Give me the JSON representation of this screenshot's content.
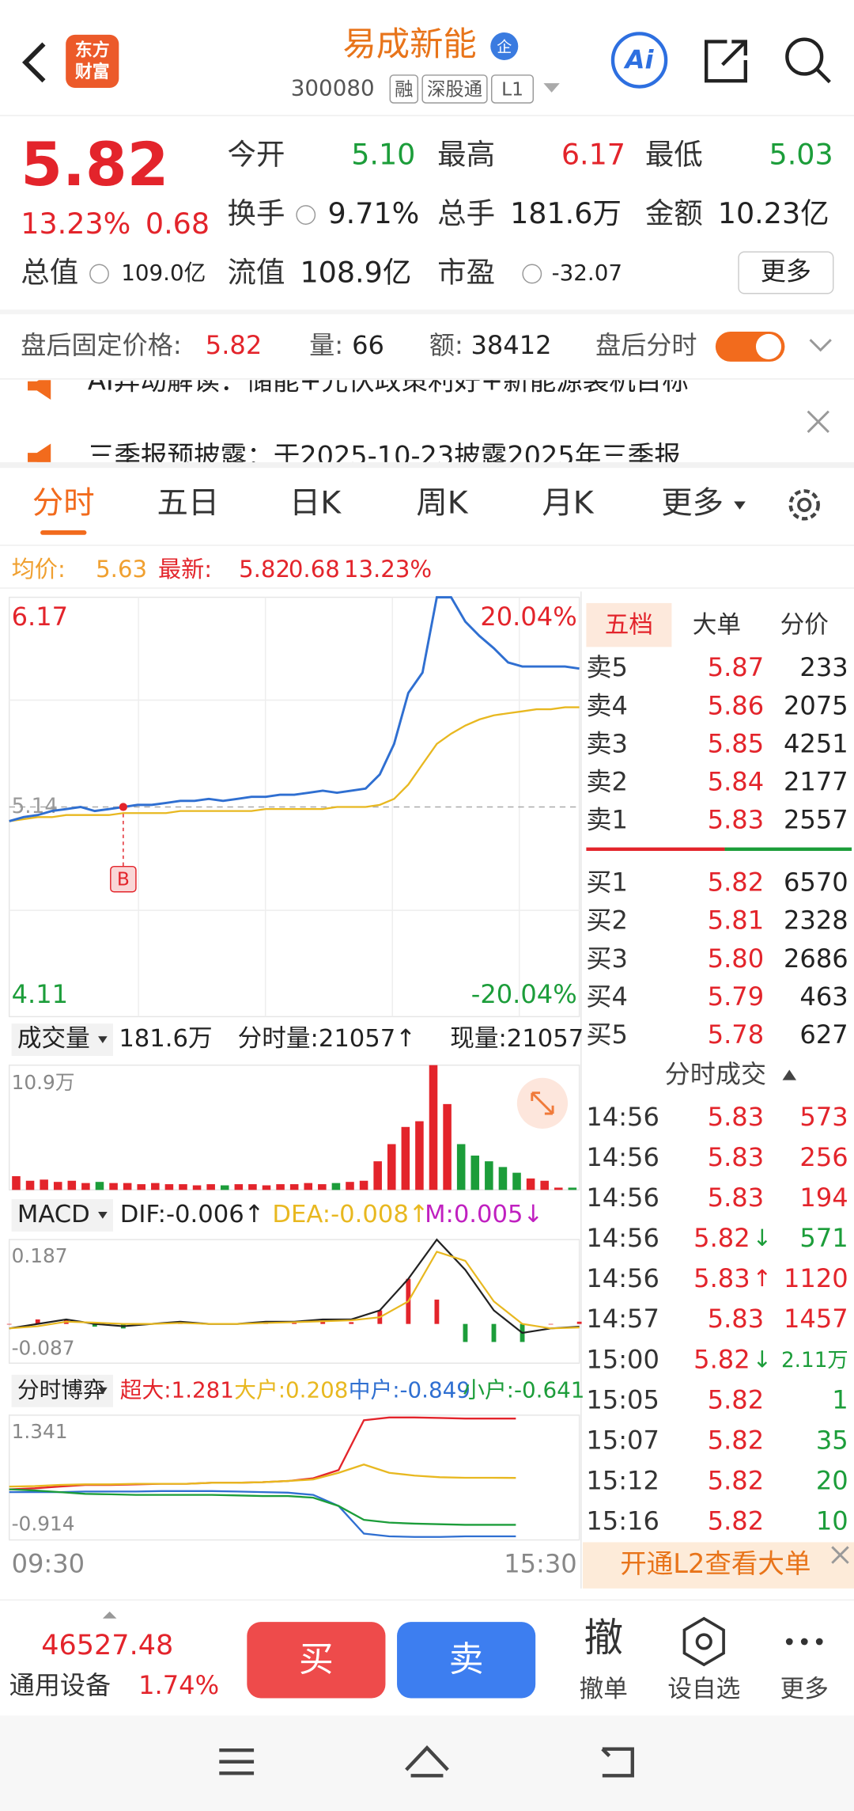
{
  "header": {
    "logo": [
      "东方",
      "财富"
    ],
    "title": "易成新能",
    "badge": "企",
    "code": "300080",
    "tags": [
      "融",
      "深股通",
      "L1"
    ],
    "ai": "Ai"
  },
  "quote": {
    "price": "5.82",
    "change_pct": "13.23%",
    "change": "0.68",
    "fields": [
      {
        "label": "今开",
        "value": "5.10",
        "color": "#1c9d3a"
      },
      {
        "label": "最高",
        "value": "6.17",
        "color": "#e3242b"
      },
      {
        "label": "最低",
        "value": "5.03",
        "color": "#1c9d3a"
      },
      {
        "label": "换手",
        "value": "9.71%",
        "color": "#222222"
      },
      {
        "label": "总手",
        "value": "181.6万",
        "color": "#222222"
      },
      {
        "label": "金额",
        "value": "10.23亿",
        "color": "#222222"
      },
      {
        "label": "总值",
        "value": "109.0亿",
        "color": "#222222"
      },
      {
        "label": "流值",
        "value": "108.9亿",
        "color": "#222222"
      },
      {
        "label": "市盈",
        "value": "-32.07",
        "color": "#222222"
      }
    ],
    "more": "更多"
  },
  "after_hours": {
    "label": "盘后固定价格:",
    "price": "5.82",
    "vol_label": "量:",
    "vol": "66",
    "amt_label": "额:",
    "amt": "38412",
    "toggle_label": "盘后分时"
  },
  "notices": [
    "AI异动解读：储能+光伏政策利好+新能源装机目标",
    "三季报预披露：于2025-10-23披露2025年三季报"
  ],
  "tabs": [
    "分时",
    "五日",
    "日K",
    "周K",
    "月K",
    "更多"
  ],
  "info_bar": {
    "avg_label": "均价:",
    "avg": "5.63",
    "last_label": "最新:",
    "last": "5.82",
    "change": "0.68",
    "pct": "13.23%"
  },
  "price_chart": {
    "ylim": [
      4.11,
      6.17
    ],
    "prev_close": 5.14,
    "pct_max": "20.04%",
    "pct_min": "-20.04%",
    "marker": "B",
    "price": [
      5.07,
      5.09,
      5.1,
      5.12,
      5.13,
      5.14,
      5.12,
      5.13,
      5.14,
      5.15,
      5.15,
      5.16,
      5.17,
      5.17,
      5.18,
      5.17,
      5.18,
      5.19,
      5.19,
      5.2,
      5.2,
      5.21,
      5.22,
      5.21,
      5.22,
      5.23,
      5.3,
      5.45,
      5.7,
      5.8,
      6.17,
      6.17,
      6.05,
      5.98,
      5.92,
      5.85,
      5.83,
      5.83,
      5.83,
      5.83,
      5.82
    ],
    "avg": [
      5.07,
      5.08,
      5.09,
      5.09,
      5.1,
      5.1,
      5.1,
      5.1,
      5.11,
      5.11,
      5.11,
      5.11,
      5.12,
      5.12,
      5.12,
      5.12,
      5.12,
      5.12,
      5.13,
      5.13,
      5.13,
      5.13,
      5.13,
      5.14,
      5.14,
      5.14,
      5.15,
      5.18,
      5.25,
      5.35,
      5.45,
      5.5,
      5.54,
      5.57,
      5.59,
      5.6,
      5.61,
      5.62,
      5.62,
      5.63,
      5.63
    ],
    "times": [
      "09:30",
      "15:30"
    ]
  },
  "volume": {
    "label": "成交量",
    "total": "181.6万",
    "tick_vol": "分时量:21057↑",
    "now_vol": "现量:21057",
    "max": {
      "value": 10.9,
      "label": "10.9万"
    },
    "values": [
      1.2,
      0.8,
      0.9,
      0.7,
      0.8,
      0.6,
      0.7,
      0.6,
      0.6,
      0.5,
      0.6,
      0.5,
      0.5,
      0.4,
      0.5,
      0.4,
      0.5,
      0.5,
      0.4,
      0.5,
      0.5,
      0.6,
      0.5,
      0.6,
      0.7,
      0.8,
      2.5,
      4.0,
      5.5,
      6.0,
      10.9,
      7.5,
      4.0,
      3.0,
      2.5,
      2.0,
      1.5,
      1.0,
      0.8,
      0.2,
      0.2
    ]
  },
  "macd": {
    "label": "MACD",
    "dif_label": "DIF:-0.006↑",
    "dea_label": "DEA:-0.008↑",
    "m_label": "M:0.005↓",
    "ylim": [
      -0.087,
      0.187
    ],
    "dif": [
      -0.01,
      0.0,
      0.01,
      0.0,
      -0.005,
      0,
      0.005,
      0.0,
      0.0,
      0.005,
      0.005,
      0.01,
      0.01,
      0.03,
      0.1,
      0.187,
      0.12,
      0.03,
      -0.02,
      -0.01,
      -0.006
    ],
    "dea": [
      -0.01,
      -0.005,
      0.005,
      0.003,
      0.0,
      0,
      0.002,
      0.0,
      0.0,
      0.002,
      0.004,
      0.006,
      0.008,
      0.015,
      0.05,
      0.16,
      0.14,
      0.05,
      0.0,
      -0.01,
      -0.008
    ],
    "m": [
      0,
      0.01,
      0.01,
      -0.006,
      -0.01,
      0,
      0.006,
      0,
      0,
      0.006,
      0.002,
      0.008,
      0.004,
      0.03,
      0.1,
      0.054,
      -0.04,
      -0.04,
      -0.04,
      0,
      0.005
    ]
  },
  "game": {
    "label": "分时博弈",
    "ylim": [
      -0.914,
      1.341
    ],
    "series": [
      {
        "name": "超大:1.281",
        "color": "#e3242b",
        "values": [
          0,
          0.02,
          0.05,
          0.08,
          0.08,
          0.09,
          0.1,
          0.1,
          0.12,
          0.12,
          0.13,
          0.15,
          0.2,
          0.35,
          1.25,
          1.3,
          1.3,
          1.29,
          1.28,
          1.28,
          1.281
        ]
      },
      {
        "name": "大户:0.208",
        "color": "#e8b820",
        "values": [
          0.05,
          0.06,
          0.08,
          0.09,
          0.09,
          0.1,
          0.1,
          0.1,
          0.12,
          0.12,
          0.13,
          0.15,
          0.18,
          0.3,
          0.45,
          0.3,
          0.25,
          0.22,
          0.21,
          0.21,
          0.208
        ]
      },
      {
        "name": "中户:-0.849",
        "color": "#2f6fd1",
        "values": [
          -0.05,
          -0.05,
          -0.05,
          -0.04,
          -0.04,
          -0.04,
          -0.03,
          -0.03,
          -0.03,
          -0.04,
          -0.05,
          -0.06,
          -0.1,
          -0.3,
          -0.8,
          -0.85,
          -0.86,
          -0.86,
          -0.85,
          -0.85,
          -0.849
        ]
      },
      {
        "name": "小户:-0.641",
        "color": "#1c9d3a",
        "values": [
          0.0,
          -0.02,
          -0.05,
          -0.08,
          -0.09,
          -0.1,
          -0.1,
          -0.1,
          -0.1,
          -0.11,
          -0.12,
          -0.12,
          -0.15,
          -0.3,
          -0.55,
          -0.6,
          -0.62,
          -0.63,
          -0.64,
          -0.64,
          -0.641
        ]
      }
    ]
  },
  "order_book": {
    "tabs": [
      "五档",
      "大单",
      "分价"
    ],
    "sells": [
      [
        "卖5",
        "5.87",
        "233"
      ],
      [
        "卖4",
        "5.86",
        "2075"
      ],
      [
        "卖3",
        "5.85",
        "4251"
      ],
      [
        "卖2",
        "5.84",
        "2177"
      ],
      [
        "卖1",
        "5.83",
        "2557"
      ]
    ],
    "buys": [
      [
        "买1",
        "5.82",
        "6570"
      ],
      [
        "买2",
        "5.81",
        "2328"
      ],
      [
        "买3",
        "5.80",
        "2686"
      ],
      [
        "买4",
        "5.79",
        "463"
      ],
      [
        "买5",
        "5.78",
        "627"
      ]
    ]
  },
  "trades": {
    "title": "分时成交",
    "rows": [
      {
        "time": "14:56",
        "price": "5.83",
        "vol": "573",
        "color": "#e3242b"
      },
      {
        "time": "14:56",
        "price": "5.83",
        "vol": "256",
        "color": "#e3242b"
      },
      {
        "time": "14:56",
        "price": "5.83",
        "vol": "194",
        "color": "#e3242b"
      },
      {
        "time": "14:56",
        "price": "5.82",
        "arrow": "↓",
        "vol": "571",
        "color": "#1c9d3a"
      },
      {
        "time": "14:56",
        "price": "5.83",
        "arrow": "↑",
        "vol": "1120",
        "color": "#e3242b"
      },
      {
        "time": "14:57",
        "price": "5.83",
        "vol": "1457",
        "color": "#e3242b"
      },
      {
        "time": "15:00",
        "price": "5.82",
        "arrow": "↓",
        "vol": "2.11万",
        "color": "#1c9d3a"
      },
      {
        "time": "15:05",
        "price": "5.82",
        "vol": "1",
        "color": "#1c9d3a"
      },
      {
        "time": "15:07",
        "price": "5.82",
        "vol": "35",
        "color": "#1c9d3a"
      },
      {
        "time": "15:12",
        "price": "5.82",
        "vol": "20",
        "color": "#1c9d3a"
      },
      {
        "time": "15:16",
        "price": "5.82",
        "vol": "10",
        "color": "#1c9d3a"
      }
    ],
    "banner": "开通L2查看大单"
  },
  "bottom": {
    "index_value": "46527.48",
    "index_name": "通用设备",
    "index_pct": "1.74%",
    "buy": "买",
    "sell": "卖",
    "cancel_icon": "撤",
    "cancel": "撤单",
    "watch": "设自选",
    "more": "更多"
  }
}
